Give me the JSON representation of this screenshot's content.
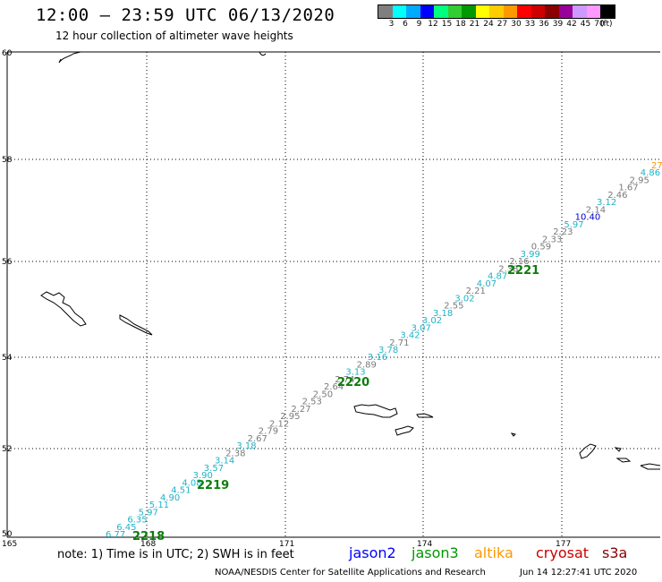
{
  "header": {
    "title": "12:00 – 23:59 UTC 06/13/2020",
    "subtitle": "12 hour collection of altimeter wave heights"
  },
  "colorbar": {
    "colors": [
      "#7f7f7f",
      "#00ffff",
      "#00aaff",
      "#0000ff",
      "#00ff7f",
      "#33cc33",
      "#009900",
      "#ffff00",
      "#ffcc00",
      "#ff9900",
      "#ff0000",
      "#cc0000",
      "#8b0000",
      "#990099",
      "#cc99ff",
      "#ff99ff",
      "#000000"
    ],
    "labels": [
      "3",
      "6",
      "9",
      "12",
      "15",
      "18",
      "21",
      "24",
      "27",
      "30",
      "33",
      "36",
      "39",
      "42",
      "45",
      "70",
      "(ft)"
    ]
  },
  "axes": {
    "lat_labels": [
      "60",
      "58",
      "56",
      "54",
      "52",
      "50"
    ],
    "lon_labels": [
      "165",
      "168",
      "171",
      "174",
      "177"
    ]
  },
  "track_points": [
    {
      "v": "6.77",
      "c": "#1fb3c7"
    },
    {
      "v": "6.45",
      "c": "#1fb3c7"
    },
    {
      "v": "6.35",
      "c": "#1fb3c7"
    },
    {
      "v": "5.97",
      "c": "#1fb3c7"
    },
    {
      "v": "5.11",
      "c": "#1fb3c7"
    },
    {
      "v": "4.90",
      "c": "#1fb3c7"
    },
    {
      "v": "4.51",
      "c": "#1fb3c7"
    },
    {
      "v": "4.08",
      "c": "#1fb3c7"
    },
    {
      "v": "3.90",
      "c": "#1fb3c7"
    },
    {
      "v": "3.57",
      "c": "#1fb3c7"
    },
    {
      "v": "3.14",
      "c": "#1fb3c7"
    },
    {
      "v": "2.38",
      "c": "#7a7a7a"
    },
    {
      "v": "3.18",
      "c": "#1fb3c7"
    },
    {
      "v": "2.67",
      "c": "#7a7a7a"
    },
    {
      "v": "2.79",
      "c": "#7a7a7a"
    },
    {
      "v": "2.12",
      "c": "#7a7a7a"
    },
    {
      "v": "2.95",
      "c": "#7a7a7a"
    },
    {
      "v": "2.27",
      "c": "#7a7a7a"
    },
    {
      "v": "2.53",
      "c": "#7a7a7a"
    },
    {
      "v": "2.50",
      "c": "#7a7a7a"
    },
    {
      "v": "2.64",
      "c": "#7a7a7a"
    },
    {
      "v": "2.74",
      "c": "#7a7a7a"
    },
    {
      "v": "3.13",
      "c": "#1fb3c7"
    },
    {
      "v": "2.89",
      "c": "#7a7a7a"
    },
    {
      "v": "3.16",
      "c": "#1fb3c7"
    },
    {
      "v": "3.78",
      "c": "#1fb3c7"
    },
    {
      "v": "2.71",
      "c": "#7a7a7a"
    },
    {
      "v": "3.42",
      "c": "#1fb3c7"
    },
    {
      "v": "3.07",
      "c": "#1fb3c7"
    },
    {
      "v": "3.02",
      "c": "#1fb3c7"
    },
    {
      "v": "3.18",
      "c": "#1fb3c7"
    },
    {
      "v": "2.55",
      "c": "#7a7a7a"
    },
    {
      "v": "3.02",
      "c": "#1fb3c7"
    },
    {
      "v": "2.21",
      "c": "#7a7a7a"
    },
    {
      "v": "4.07",
      "c": "#1fb3c7"
    },
    {
      "v": "4.87",
      "c": "#1fb3c7"
    },
    {
      "v": "2.38",
      "c": "#7a7a7a"
    },
    {
      "v": "2.16",
      "c": "#7a7a7a"
    },
    {
      "v": "3.99",
      "c": "#1fb3c7"
    },
    {
      "v": "0.59",
      "c": "#7a7a7a"
    },
    {
      "v": "2.33",
      "c": "#7a7a7a"
    },
    {
      "v": "2.23",
      "c": "#7a7a7a"
    },
    {
      "v": "5.97",
      "c": "#1fb3c7"
    },
    {
      "v": "10.40",
      "c": "#0000cc"
    },
    {
      "v": "2.14",
      "c": "#7a7a7a"
    },
    {
      "v": "3.12",
      "c": "#1fb3c7"
    },
    {
      "v": "2.46",
      "c": "#7a7a7a"
    },
    {
      "v": "1.67",
      "c": "#7a7a7a"
    },
    {
      "v": "2.95",
      "c": "#7a7a7a"
    },
    {
      "v": "4.86",
      "c": "#1fb3c7"
    },
    {
      "v": "27",
      "c": "#ff9900"
    }
  ],
  "pass_labels": [
    "2218",
    "2219",
    "2220",
    "2221"
  ],
  "footer": {
    "note": "note: 1) Time is in UTC; 2) SWH is in feet",
    "satellites": [
      {
        "name": "jason2",
        "color": "#0000ff"
      },
      {
        "name": "jason3",
        "color": "#009900"
      },
      {
        "name": "altika",
        "color": "#ff9900"
      },
      {
        "name": "cryosat",
        "color": "#cc0000"
      },
      {
        "name": "s3a",
        "color": "#8b0000"
      }
    ],
    "credit": "NOAA/NESDIS Center for Satellite Applications and Research",
    "timestamp": "Jun 14 12:27:41 UTC 2020"
  }
}
